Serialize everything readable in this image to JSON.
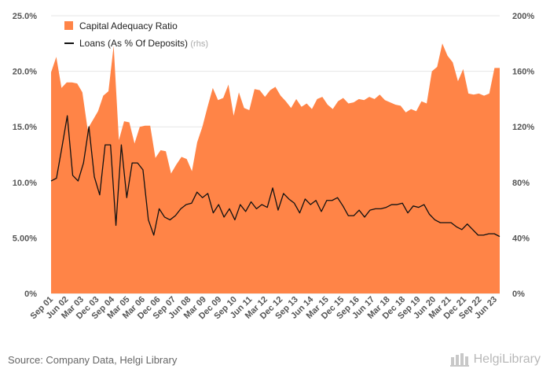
{
  "footer": {
    "source": "Source: Company Data, Helgi Library",
    "brand": "HelgiLibrary"
  },
  "chart_data": {
    "type": "area",
    "legend": {
      "position": "top-left",
      "entries": [
        {
          "label": "Capital Adequacy Ratio",
          "suffix": ""
        },
        {
          "label": "Loans (As % Of Deposits)",
          "suffix": "(rhs)"
        }
      ]
    },
    "colors": {
      "area": "#ff8447",
      "line": "#111111",
      "grid": "#e6e6e6",
      "ticks": "#555555"
    },
    "x_tick_labels": [
      "Sep 01",
      "Jun 02",
      "Mar 03",
      "Dec 03",
      "Sep 04",
      "Mar 05",
      "Mar 06",
      "Dec 06",
      "Sep 07",
      "Jun 08",
      "Mar 09",
      "Dec 09",
      "Sep 10",
      "Jun 11",
      "Mar 12",
      "Dec 12",
      "Sep 13",
      "Jun 14",
      "Mar 15",
      "Dec 15",
      "Sep 16",
      "Jun 17",
      "Mar 18",
      "Dec 18",
      "Sep 19",
      "Jun 20",
      "Mar 21",
      "Dec 21",
      "Sep 22",
      "Jun 23"
    ],
    "y_left": {
      "ticks": [
        "0%",
        "5.00%",
        "10.0%",
        "15.0%",
        "20.0%",
        "25.0%"
      ],
      "range": [
        0,
        25
      ]
    },
    "y_right": {
      "ticks": [
        "0%",
        "40%",
        "80%",
        "120%",
        "160%",
        "200%"
      ],
      "range": [
        0,
        200
      ]
    },
    "grid": true,
    "series": [
      {
        "name": "Capital Adequacy Ratio",
        "axis": "left",
        "kind": "area",
        "values": [
          19.9,
          21.3,
          18.5,
          19.0,
          19.0,
          18.9,
          18.1,
          14.8,
          15.6,
          16.4,
          17.8,
          18.2,
          22.3,
          13.8,
          15.5,
          15.4,
          13.5,
          15.0,
          15.1,
          15.1,
          12.2,
          12.9,
          12.8,
          10.8,
          11.6,
          12.3,
          12.1,
          11.0,
          13.6,
          15.0,
          16.8,
          18.5,
          17.4,
          17.6,
          18.8,
          16.0,
          18.1,
          16.7,
          16.5,
          18.4,
          18.3,
          17.7,
          18.3,
          18.6,
          17.8,
          17.3,
          16.7,
          17.5,
          16.8,
          17.1,
          16.6,
          17.5,
          17.7,
          17.0,
          16.6,
          17.3,
          17.6,
          17.1,
          17.2,
          17.5,
          17.4,
          17.7,
          17.5,
          17.9,
          17.4,
          17.2,
          17.0,
          16.9,
          16.3,
          16.6,
          16.4,
          17.3,
          17.1,
          20.0,
          20.4,
          22.5,
          21.4,
          20.8,
          19.1,
          20.2,
          18.0,
          17.9,
          18.0,
          17.8,
          18.0,
          20.3,
          20.3
        ]
      },
      {
        "name": "Loans (As % Of Deposits)",
        "axis": "right",
        "kind": "line",
        "values": [
          81,
          83,
          105,
          128,
          85,
          81,
          94,
          120,
          84,
          71,
          107,
          107,
          49,
          107,
          69,
          94,
          94,
          89,
          53,
          42,
          61,
          55,
          53,
          56,
          61,
          64,
          65,
          73,
          69,
          72,
          58,
          64,
          55,
          61,
          53,
          64,
          59,
          66,
          61,
          64,
          62,
          76,
          60,
          72,
          68,
          65,
          58,
          68,
          64,
          67,
          59,
          67,
          67,
          69,
          63,
          56,
          56,
          60,
          55,
          60,
          61,
          61,
          62,
          64,
          64,
          65,
          58,
          63,
          62,
          64,
          57,
          53,
          51,
          51,
          51,
          48,
          46,
          50,
          46,
          42,
          42,
          43,
          43,
          41
        ]
      }
    ]
  }
}
